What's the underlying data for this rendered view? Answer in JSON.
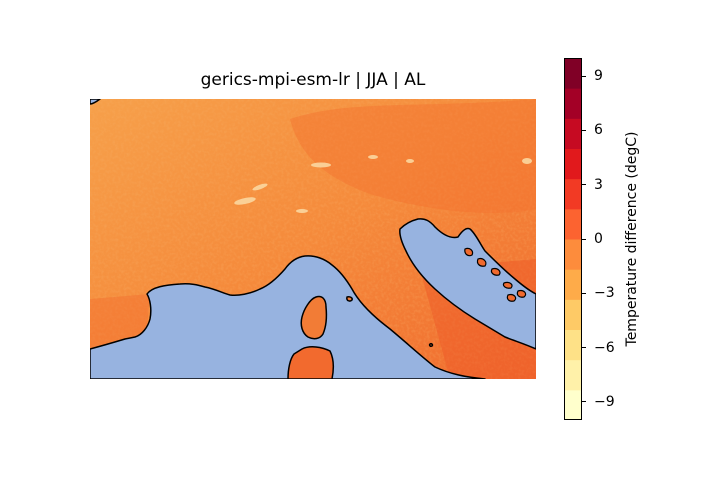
{
  "title": "gerics-mpi-esm-lr | JJA | AL",
  "colorbar": {
    "label": "Temperature difference (degC)",
    "range": [
      -10,
      10
    ],
    "ticks": [
      "9",
      "6",
      "3",
      "0",
      "−3",
      "−6",
      "−9"
    ],
    "tick_values": [
      9,
      6,
      3,
      0,
      -3,
      -6,
      -9
    ],
    "colormap": "YlOrRd",
    "colors": [
      "#ffffcc",
      "#fff1a9",
      "#fee187",
      "#feca66",
      "#feab49",
      "#fd8c3c",
      "#fc6330",
      "#f23a24",
      "#e1191c",
      "#c60a22",
      "#a30026",
      "#800026"
    ]
  },
  "map": {
    "sea_color": "#97b3e0",
    "land_base_color": "#f39440",
    "coastline_color": "#000000"
  }
}
